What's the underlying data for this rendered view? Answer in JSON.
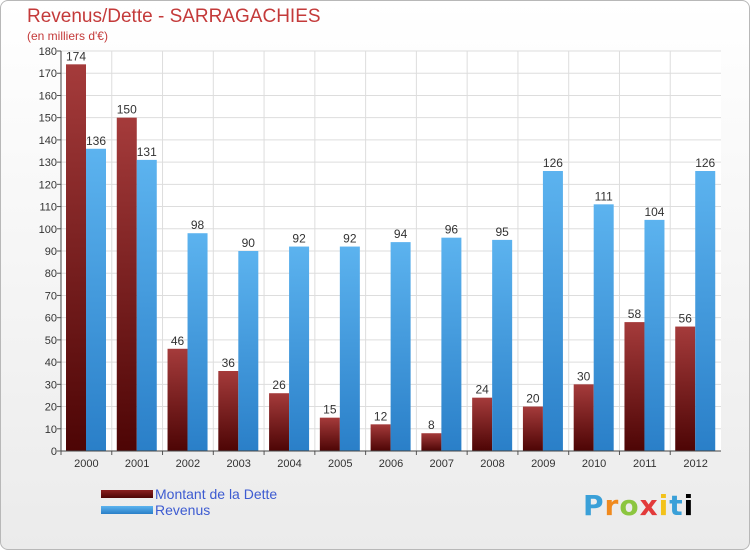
{
  "chart_data": {
    "type": "bar",
    "title": "Revenus/Dette - SARRAGACHIES",
    "subtitle": "(en milliers d'€)",
    "categories": [
      "2000",
      "2001",
      "2002",
      "2003",
      "2004",
      "2005",
      "2006",
      "2007",
      "2008",
      "2009",
      "2010",
      "2011",
      "2012"
    ],
    "series": [
      {
        "name": "Montant de la Dette",
        "color": "#7a1515",
        "values": [
          174,
          150,
          46,
          36,
          26,
          15,
          12,
          8,
          24,
          20,
          30,
          58,
          56
        ]
      },
      {
        "name": "Revenus",
        "color": "#4aa3e6",
        "values": [
          136,
          131,
          98,
          90,
          92,
          92,
          94,
          96,
          95,
          126,
          111,
          104,
          126
        ]
      }
    ],
    "yticks": [
      0,
      10,
      20,
      30,
      40,
      50,
      60,
      70,
      80,
      90,
      100,
      110,
      120,
      130,
      140,
      150,
      160,
      170,
      180
    ],
    "ylim": [
      0,
      180
    ],
    "grid": true,
    "legend": "bottom-left"
  },
  "logo": {
    "letters": [
      "P",
      "r",
      "o",
      "x",
      "i",
      "t",
      "i"
    ]
  }
}
